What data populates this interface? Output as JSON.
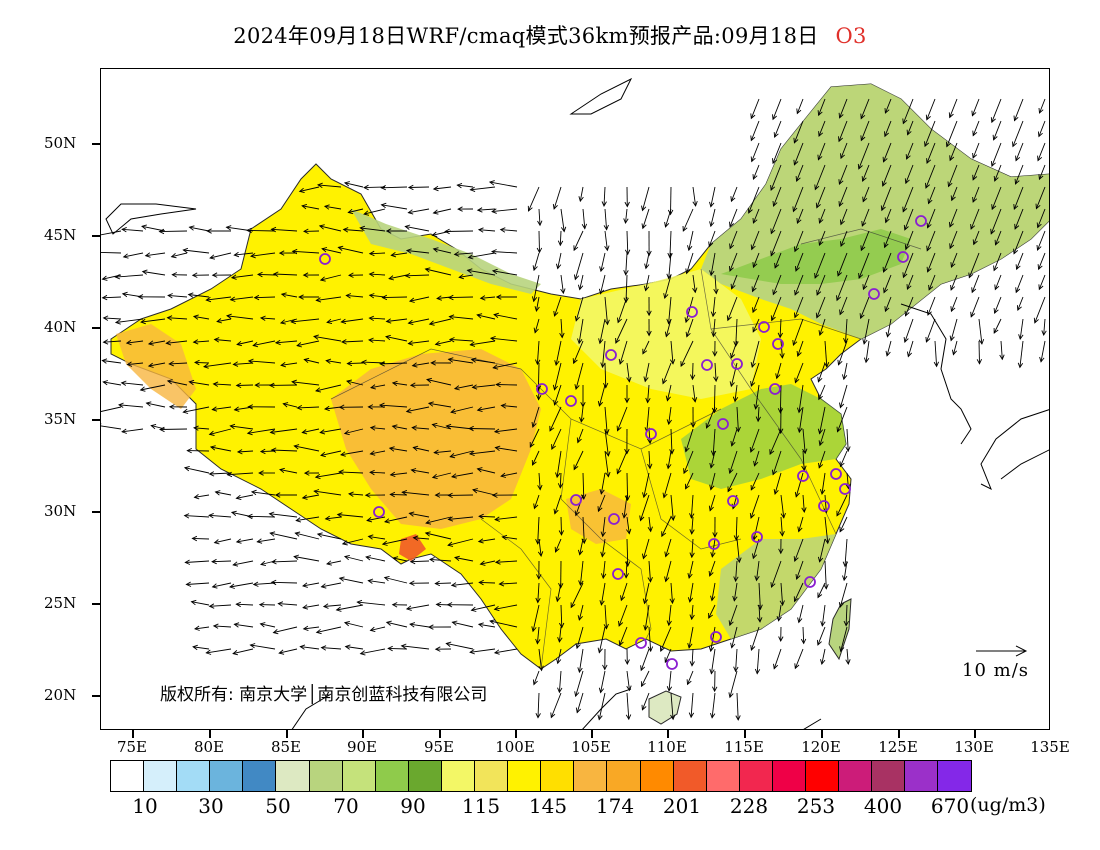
{
  "title": {
    "main": "2024年09月18日WRF/cmaq模式36km预报产品:09月18日",
    "species": "O3"
  },
  "axes": {
    "y_labels": [
      "50N",
      "45N",
      "40N",
      "35N",
      "30N",
      "25N",
      "20N"
    ],
    "x_labels": [
      "75E",
      "80E",
      "85E",
      "90E",
      "95E",
      "100E",
      "105E",
      "110E",
      "115E",
      "120E",
      "125E",
      "130E",
      "135E"
    ]
  },
  "copyright": "版权所有: 南京大学│南京创蓝科技有限公司",
  "vector_legend": "10 m/s",
  "colorbar": {
    "colors": [
      "#ffffff",
      "#d5effb",
      "#a3dcf6",
      "#6bb4dd",
      "#4189c4",
      "#dde9c2",
      "#b8d47e",
      "#c5e27b",
      "#8fcb4b",
      "#6aa82e",
      "#f3f766",
      "#f2e45a",
      "#fff200",
      "#ffdf00",
      "#f8b540",
      "#f9a825",
      "#ff8a00",
      "#f15a29",
      "#ff6b6b",
      "#f2274f",
      "#ef0047",
      "#ff0000",
      "#cc1c79",
      "#a83263",
      "#9b30c9",
      "#8428e8"
    ],
    "labels": [
      "10",
      "30",
      "50",
      "70",
      "90",
      "115",
      "145",
      "174",
      "201",
      "228",
      "253",
      "400",
      "670"
    ],
    "unit": "(ug/m3)"
  }
}
